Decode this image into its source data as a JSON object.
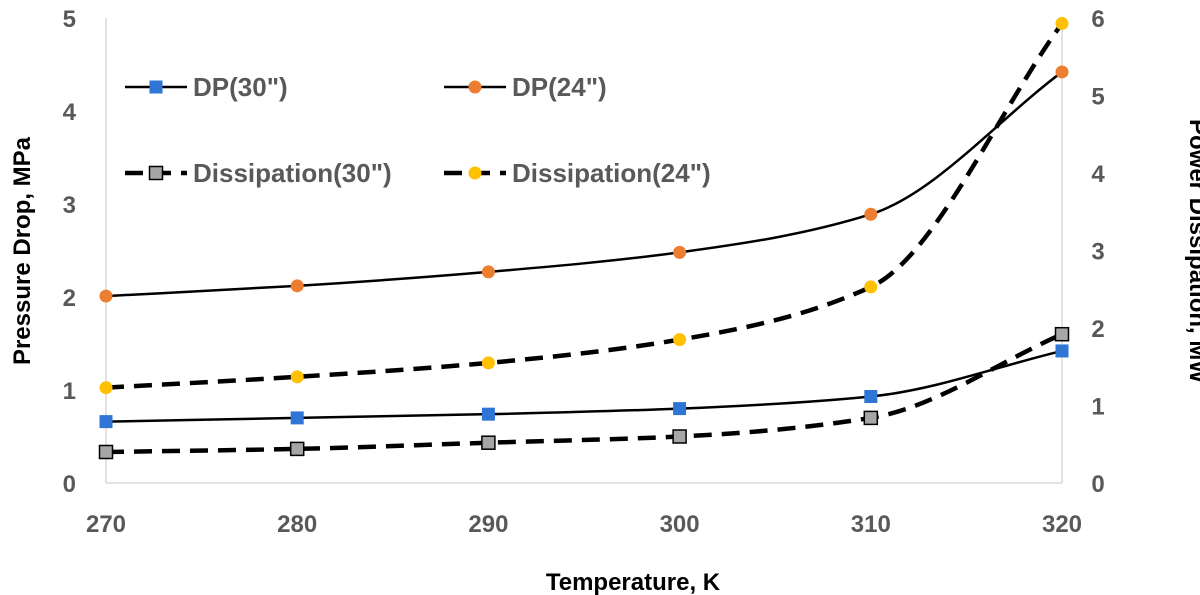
{
  "chart_data": {
    "type": "line",
    "title": "",
    "xlabel": "Temperature, K",
    "ylabel_left": "Pressure Drop, MPa",
    "ylabel_right": "Power Dissipation, MW",
    "x": [
      270,
      280,
      290,
      300,
      310,
      320
    ],
    "xlim": [
      270,
      320
    ],
    "x_ticks": [
      "270",
      "280",
      "290",
      "300",
      "310",
      "320"
    ],
    "ylim_left": [
      0,
      5
    ],
    "y_ticks_left": [
      "0",
      "1",
      "2",
      "3",
      "4",
      "5"
    ],
    "ylim_right": [
      0,
      6
    ],
    "y_ticks_right": [
      "0",
      "1",
      "2",
      "3",
      "4",
      "5",
      "6"
    ],
    "grid": false,
    "legend": "top-left, inside plot",
    "series": [
      {
        "name": "DP(30\")",
        "axis": "left",
        "values": [
          0.66,
          0.7,
          0.74,
          0.8,
          0.93,
          1.42
        ],
        "marker": "square",
        "color": "#2E75D6",
        "line": "solid",
        "line_color": "#000000"
      },
      {
        "name": "DP(24\")",
        "axis": "left",
        "values": [
          2.01,
          2.12,
          2.27,
          2.48,
          2.89,
          4.42
        ],
        "marker": "circle",
        "color": "#ED7D31",
        "line": "solid",
        "line_color": "#000000"
      },
      {
        "name": "Dissipation(30\")",
        "axis": "right",
        "values": [
          0.4,
          0.44,
          0.52,
          0.6,
          0.84,
          1.92
        ],
        "marker": "square",
        "color": "#A6A6A6",
        "line": "dashed",
        "line_color": "#000000"
      },
      {
        "name": "Dissipation(24\")",
        "axis": "right",
        "values": [
          1.23,
          1.37,
          1.55,
          1.85,
          2.53,
          5.93
        ],
        "marker": "circle",
        "color": "#FFC000",
        "line": "dashed",
        "line_color": "#000000"
      }
    ]
  }
}
